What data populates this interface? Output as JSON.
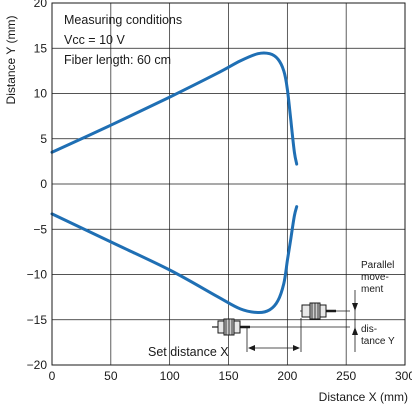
{
  "chart_data": {
    "type": "line",
    "xlabel": "Distance X (mm)",
    "ylabel": "Distance Y (mm)",
    "xlim": [
      0,
      300
    ],
    "ylim": [
      -20,
      20
    ],
    "xticks": [
      0,
      50,
      100,
      150,
      200,
      250,
      300
    ],
    "yticks": [
      20,
      15,
      10,
      5,
      0,
      -5,
      -10,
      -15,
      -20
    ],
    "grid": true,
    "annotations": [
      "Measuring conditions",
      "Vcc = 10 V",
      "Fiber length: 60 cm"
    ],
    "inset": {
      "set_distance_label": "Set distance X",
      "parallel_label_lines": [
        "Parallel",
        "move-",
        "ment",
        "dis-",
        "tance Y"
      ]
    },
    "series": [
      {
        "color": "#1f6fb4",
        "x": [
          0,
          50,
          100,
          140,
          160,
          175,
          185,
          192,
          197,
          200,
          203,
          206,
          208
        ],
        "y": [
          3.5,
          6.5,
          9.6,
          12.2,
          13.6,
          14.4,
          14.4,
          13.8,
          12.5,
          10.5,
          7.0,
          3.5,
          2.2
        ]
      },
      {
        "color": "#1f6fb4",
        "x": [
          0,
          50,
          100,
          140,
          160,
          175,
          185,
          192,
          197,
          200,
          203,
          206,
          208
        ],
        "y": [
          -3.3,
          -6.4,
          -9.5,
          -12.4,
          -13.8,
          -14.2,
          -13.9,
          -12.9,
          -11.0,
          -8.5,
          -6.0,
          -3.5,
          -2.5
        ]
      }
    ]
  }
}
